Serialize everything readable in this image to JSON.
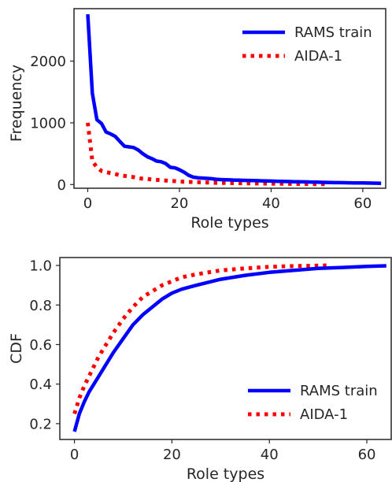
{
  "chart_data": [
    {
      "type": "line",
      "title": "",
      "xlabel": "Role types",
      "ylabel": "Frequency",
      "xlim": [
        -3,
        65
      ],
      "ylim": [
        -60,
        2850
      ],
      "xticks": [
        0,
        20,
        40,
        60
      ],
      "yticks": [
        0,
        1000,
        2000
      ],
      "grid": false,
      "legend_position": "top-right",
      "series": [
        {
          "name": "RAMS train",
          "color": "#0000ff",
          "style": "solid",
          "x": [
            0,
            1,
            2,
            3,
            4,
            5,
            6,
            7,
            8,
            9,
            10,
            11,
            12,
            13,
            14,
            15,
            16,
            17,
            18,
            19,
            20,
            21,
            22,
            23,
            24,
            25,
            26,
            27,
            28,
            29,
            30,
            31,
            32,
            33,
            34,
            35,
            36,
            37,
            38,
            39,
            40,
            41,
            42,
            43,
            44,
            45,
            46,
            47,
            48,
            49,
            50,
            51,
            52,
            53,
            54,
            55,
            56,
            57,
            58,
            59,
            60,
            61,
            62,
            63,
            64
          ],
          "values": [
            2760,
            1480,
            1050,
            990,
            850,
            820,
            780,
            700,
            620,
            610,
            600,
            560,
            500,
            450,
            420,
            380,
            370,
            340,
            280,
            270,
            240,
            200,
            150,
            120,
            110,
            105,
            100,
            95,
            85,
            80,
            78,
            75,
            72,
            70,
            68,
            66,
            64,
            62,
            60,
            58,
            56,
            54,
            52,
            50,
            48,
            46,
            45,
            44,
            42,
            40,
            38,
            36,
            34,
            32,
            31,
            30,
            29,
            28,
            27,
            26,
            25,
            24,
            23,
            22,
            21
          ]
        },
        {
          "name": "AIDA-1",
          "color": "#ff0000",
          "style": "dotted",
          "x": [
            0,
            1,
            2,
            3,
            4,
            5,
            6,
            7,
            8,
            9,
            10,
            11,
            12,
            13,
            14,
            15,
            16,
            17,
            18,
            19,
            20,
            21,
            22,
            23,
            24,
            25,
            26,
            27,
            28,
            29,
            30,
            31,
            32,
            33,
            34,
            35,
            36,
            37,
            38,
            39,
            40,
            41,
            42,
            43,
            44,
            45,
            46,
            47,
            48,
            49,
            50,
            51,
            52
          ],
          "values": [
            1000,
            380,
            280,
            220,
            200,
            185,
            170,
            150,
            140,
            130,
            120,
            105,
            95,
            90,
            80,
            75,
            70,
            65,
            60,
            55,
            50,
            45,
            42,
            40,
            38,
            35,
            33,
            30,
            28,
            26,
            25,
            24,
            23,
            22,
            21,
            20,
            19,
            18,
            17,
            16,
            15,
            14,
            13,
            12,
            11,
            10,
            10,
            9,
            9,
            8,
            8,
            7,
            7
          ]
        }
      ]
    },
    {
      "type": "line",
      "title": "",
      "xlabel": "Role types",
      "ylabel": "CDF",
      "xlim": [
        -3,
        65
      ],
      "ylim": [
        0.12,
        1.04
      ],
      "xticks": [
        0,
        20,
        40,
        60
      ],
      "yticks": [
        0.2,
        0.4,
        0.6,
        0.8,
        1.0
      ],
      "ytick_labels": [
        "0.2",
        "0.4",
        "0.6",
        "0.8",
        "1.0"
      ],
      "grid": false,
      "legend_position": "bottom-right",
      "series": [
        {
          "name": "RAMS train",
          "color": "#0000ff",
          "style": "solid",
          "x": [
            0,
            1,
            2,
            3,
            4,
            5,
            6,
            8,
            10,
            12,
            14,
            16,
            18,
            20,
            22,
            25,
            30,
            35,
            40,
            45,
            50,
            55,
            60,
            64
          ],
          "values": [
            0.16,
            0.25,
            0.31,
            0.36,
            0.4,
            0.44,
            0.48,
            0.56,
            0.63,
            0.7,
            0.75,
            0.79,
            0.83,
            0.86,
            0.88,
            0.9,
            0.93,
            0.95,
            0.965,
            0.975,
            0.985,
            0.99,
            0.995,
            0.998
          ]
        },
        {
          "name": "AIDA-1",
          "color": "#ff0000",
          "style": "dotted",
          "x": [
            0,
            1,
            2,
            3,
            4,
            5,
            6,
            8,
            10,
            12,
            14,
            16,
            18,
            20,
            22,
            25,
            30,
            35,
            40,
            45,
            50,
            52
          ],
          "values": [
            0.25,
            0.33,
            0.39,
            0.44,
            0.49,
            0.54,
            0.58,
            0.66,
            0.73,
            0.79,
            0.84,
            0.87,
            0.9,
            0.92,
            0.94,
            0.955,
            0.975,
            0.985,
            0.993,
            0.997,
            0.999,
            1.0
          ]
        }
      ]
    }
  ]
}
